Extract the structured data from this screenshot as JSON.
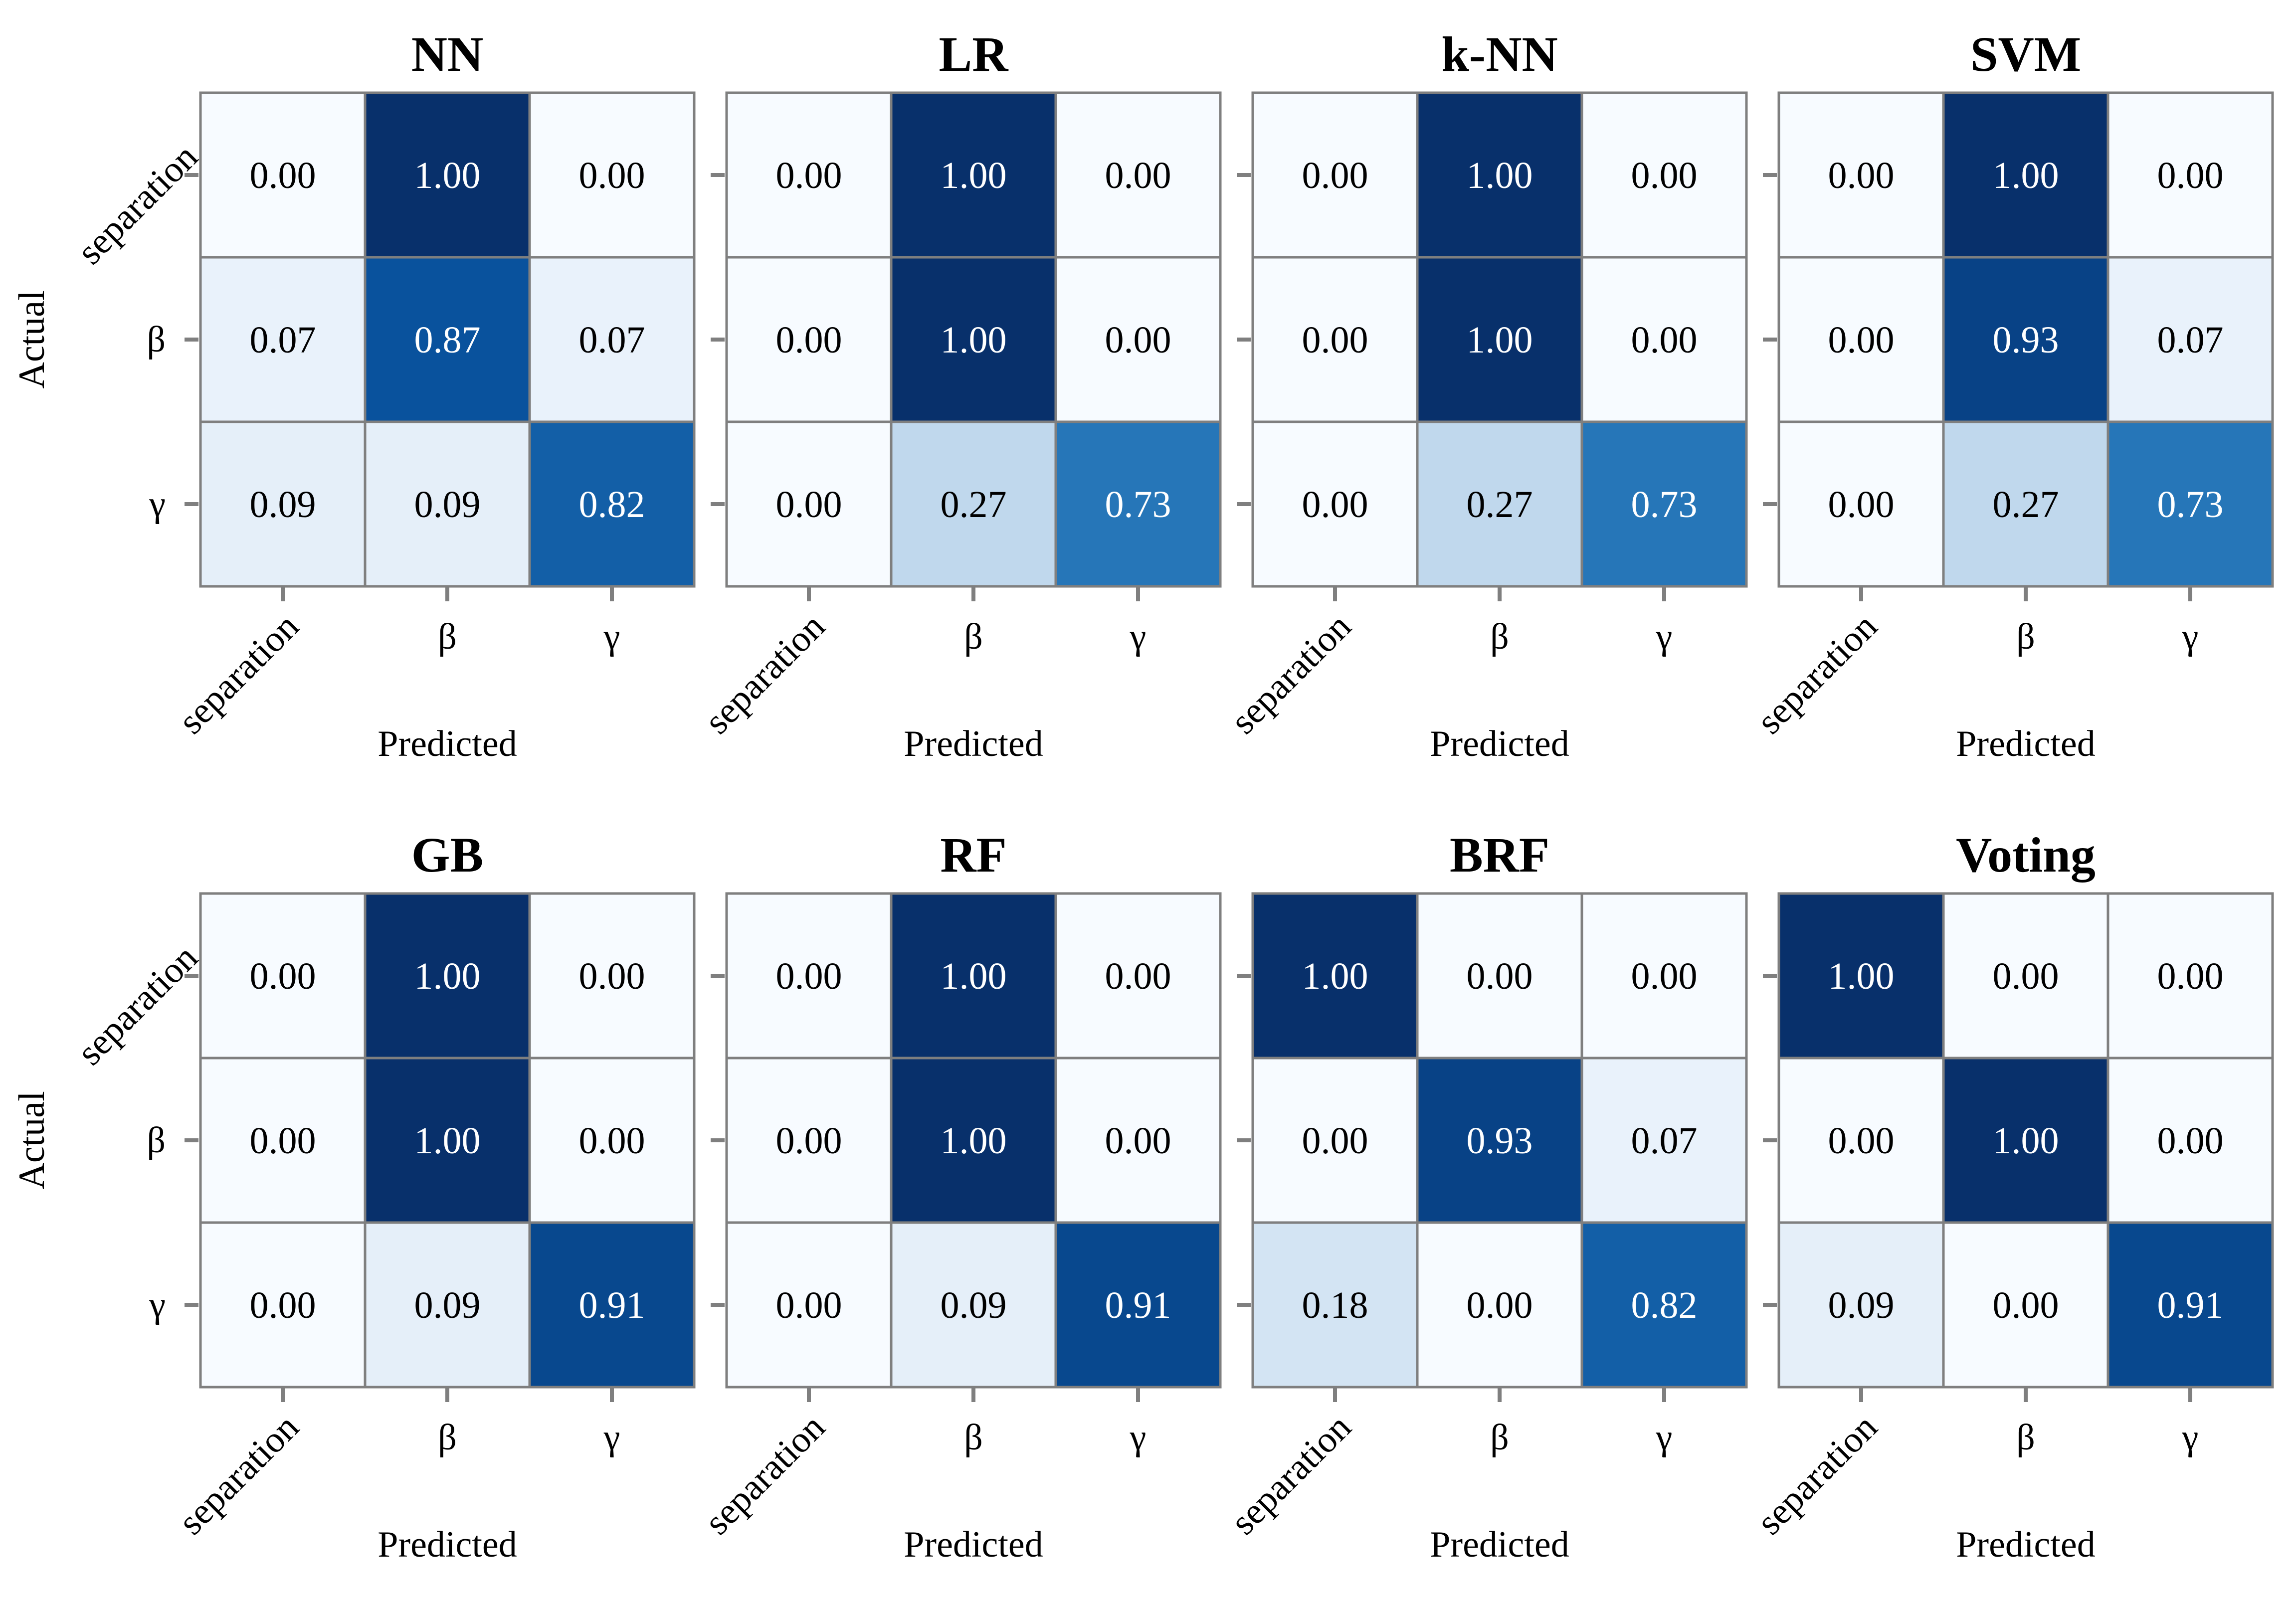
{
  "figure": {
    "layout": "2 rows x 4 columns of confusion matrices"
  },
  "chart_data": [
    {
      "type": "heatmap",
      "title": "NN",
      "xlabel": "Predicted",
      "ylabel": "Actual",
      "x_ticks": [
        "separation",
        "β",
        "γ"
      ],
      "y_ticks": [
        "separation",
        "β",
        "γ"
      ],
      "colormap": "Blues",
      "vmin": 0,
      "vmax": 1,
      "matrix": [
        [
          0.0,
          1.0,
          0.0
        ],
        [
          0.07,
          0.87,
          0.07
        ],
        [
          0.09,
          0.09,
          0.82
        ]
      ]
    },
    {
      "type": "heatmap",
      "title": "LR",
      "xlabel": "Predicted",
      "ylabel": "",
      "x_ticks": [
        "separation",
        "β",
        "γ"
      ],
      "y_ticks": [],
      "colormap": "Blues",
      "vmin": 0,
      "vmax": 1,
      "matrix": [
        [
          0.0,
          1.0,
          0.0
        ],
        [
          0.0,
          1.0,
          0.0
        ],
        [
          0.0,
          0.27,
          0.73
        ]
      ]
    },
    {
      "type": "heatmap",
      "title": "k-NN",
      "xlabel": "Predicted",
      "ylabel": "",
      "x_ticks": [
        "separation",
        "β",
        "γ"
      ],
      "y_ticks": [],
      "colormap": "Blues",
      "vmin": 0,
      "vmax": 1,
      "matrix": [
        [
          0.0,
          1.0,
          0.0
        ],
        [
          0.0,
          1.0,
          0.0
        ],
        [
          0.0,
          0.27,
          0.73
        ]
      ]
    },
    {
      "type": "heatmap",
      "title": "SVM",
      "xlabel": "Predicted",
      "ylabel": "",
      "x_ticks": [
        "separation",
        "β",
        "γ"
      ],
      "y_ticks": [],
      "colormap": "Blues",
      "vmin": 0,
      "vmax": 1,
      "matrix": [
        [
          0.0,
          1.0,
          0.0
        ],
        [
          0.0,
          0.93,
          0.07
        ],
        [
          0.0,
          0.27,
          0.73
        ]
      ]
    },
    {
      "type": "heatmap",
      "title": "GB",
      "xlabel": "Predicted",
      "ylabel": "Actual",
      "x_ticks": [
        "separation",
        "β",
        "γ"
      ],
      "y_ticks": [
        "separation",
        "β",
        "γ"
      ],
      "colormap": "Blues",
      "vmin": 0,
      "vmax": 1,
      "matrix": [
        [
          0.0,
          1.0,
          0.0
        ],
        [
          0.0,
          1.0,
          0.0
        ],
        [
          0.0,
          0.09,
          0.91
        ]
      ]
    },
    {
      "type": "heatmap",
      "title": "RF",
      "xlabel": "Predicted",
      "ylabel": "",
      "x_ticks": [
        "separation",
        "β",
        "γ"
      ],
      "y_ticks": [],
      "colormap": "Blues",
      "vmin": 0,
      "vmax": 1,
      "matrix": [
        [
          0.0,
          1.0,
          0.0
        ],
        [
          0.0,
          1.0,
          0.0
        ],
        [
          0.0,
          0.09,
          0.91
        ]
      ]
    },
    {
      "type": "heatmap",
      "title": "BRF",
      "xlabel": "Predicted",
      "ylabel": "",
      "x_ticks": [
        "separation",
        "β",
        "γ"
      ],
      "y_ticks": [],
      "colormap": "Blues",
      "vmin": 0,
      "vmax": 1,
      "matrix": [
        [
          1.0,
          0.0,
          0.0
        ],
        [
          0.0,
          0.93,
          0.07
        ],
        [
          0.18,
          0.0,
          0.82
        ]
      ]
    },
    {
      "type": "heatmap",
      "title": "Voting",
      "xlabel": "Predicted",
      "ylabel": "",
      "x_ticks": [
        "separation",
        "β",
        "γ"
      ],
      "y_ticks": [],
      "colormap": "Blues",
      "vmin": 0,
      "vmax": 1,
      "matrix": [
        [
          1.0,
          0.0,
          0.0
        ],
        [
          0.0,
          1.0,
          0.0
        ],
        [
          0.09,
          0.0,
          0.91
        ]
      ]
    }
  ],
  "colors": {
    "cell_border": "#7f7f7f",
    "tick_mark": "#7f7f7f",
    "text_dark": "#000000",
    "text_light": "#ffffff",
    "blues_scale": [
      "#f7fbff",
      "#deebf7",
      "#c6dbef",
      "#9ecae1",
      "#6baed6",
      "#4292c6",
      "#2171b5",
      "#08519c",
      "#08306b"
    ]
  }
}
